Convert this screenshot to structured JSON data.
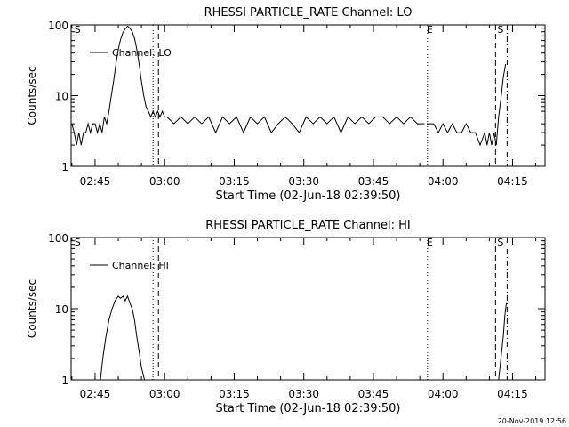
{
  "footer_timestamp": "20-Nov-2019 12:56",
  "chart_data": [
    {
      "type": "line",
      "title": "RHESSI PARTICLE_RATE Channel: LO",
      "xlabel": "Start Time (02-Jun-18 02:39:50)",
      "ylabel": "Counts/sec",
      "yscale": "log",
      "ylim": [
        1,
        100
      ],
      "xlim": [
        "02:39:50",
        "04:22:00"
      ],
      "x_ticks": [
        "02:45",
        "03:00",
        "03:15",
        "03:30",
        "03:45",
        "04:00",
        "04:15"
      ],
      "y_ticks": [
        "1",
        "10",
        "100"
      ],
      "legend": {
        "position": "top-left",
        "entries": [
          "Channel: LO"
        ]
      },
      "markers": [
        {
          "time": "02:40:10",
          "label": "S",
          "style": "none"
        },
        {
          "time": "02:57:30",
          "label": "",
          "style": "dotted"
        },
        {
          "time": "02:58:40",
          "label": "",
          "style": "dashed"
        },
        {
          "time": "03:56:40",
          "label": "E",
          "style": "dotted"
        },
        {
          "time": "04:11:20",
          "label": "S",
          "style": "dashed"
        },
        {
          "time": "04:13:50",
          "label": "",
          "style": "dashdot"
        }
      ],
      "series": [
        {
          "name": "Channel: LO",
          "segments": [
            {
              "x": [
                "02:40:00",
                "02:40:30",
                "02:41:00",
                "02:41:30",
                "02:42:00",
                "02:42:30",
                "02:43:00",
                "02:43:30",
                "02:44:00",
                "02:44:30",
                "02:45:00",
                "02:45:30",
                "02:46:00",
                "02:46:30",
                "02:47:00",
                "02:47:30",
                "02:48:00",
                "02:48:30",
                "02:49:00",
                "02:49:30",
                "02:50:00",
                "02:50:30",
                "02:51:00",
                "02:51:30",
                "02:52:00",
                "02:52:30",
                "02:53:00",
                "02:53:30",
                "02:54:00",
                "02:54:30",
                "02:55:00",
                "02:55:30",
                "02:56:00",
                "02:56:30",
                "02:57:00",
                "02:57:30",
                "02:58:00",
                "02:58:30",
                "02:59:00",
                "02:59:30",
                "03:00:00"
              ],
              "y": [
                4,
                3,
                2,
                3,
                2,
                3,
                3,
                4,
                3,
                4,
                4,
                3,
                4,
                3,
                5,
                4,
                6,
                10,
                16,
                28,
                45,
                62,
                78,
                88,
                96,
                90,
                80,
                65,
                45,
                28,
                16,
                10,
                7,
                6,
                5,
                6,
                5,
                6,
                5,
                6,
                5
              ]
            },
            {
              "x": [
                "03:00:30",
                "03:02:00",
                "03:03:30",
                "03:05:00",
                "03:06:30",
                "03:08:00",
                "03:09:30",
                "03:11:00",
                "03:12:30",
                "03:14:00",
                "03:15:30",
                "03:17:00",
                "03:18:30",
                "03:20:00",
                "03:21:30",
                "03:23:00",
                "03:24:30",
                "03:26:00",
                "03:27:30",
                "03:29:00",
                "03:30:30",
                "03:32:00",
                "03:33:30",
                "03:35:00",
                "03:36:30",
                "03:38:00",
                "03:39:30",
                "03:41:00",
                "03:42:30",
                "03:44:00",
                "03:45:30",
                "03:47:00",
                "03:48:30",
                "03:50:00",
                "03:51:30",
                "03:53:00",
                "03:54:30",
                "03:56:00"
              ],
              "y": [
                5,
                4,
                5,
                4,
                5,
                4,
                5,
                3,
                5,
                4,
                5,
                3,
                5,
                4,
                5,
                3,
                4,
                5,
                4,
                3,
                5,
                4,
                5,
                4,
                5,
                3,
                5,
                4,
                5,
                4,
                5,
                5,
                4,
                5,
                4,
                5,
                4,
                4
              ]
            },
            {
              "x": [
                "03:56:30",
                "03:58:00",
                "03:59:00",
                "04:00:00",
                "04:01:00",
                "04:02:00",
                "04:03:00",
                "04:04:00",
                "04:05:00",
                "04:06:00",
                "04:07:00",
                "04:08:00",
                "04:09:00",
                "04:09:30",
                "04:10:00",
                "04:10:30",
                "04:11:00",
                "04:11:30",
                "04:12:00",
                "04:12:30",
                "04:13:00",
                "04:13:30"
              ],
              "y": [
                4,
                4,
                3,
                4,
                3,
                4,
                3,
                3,
                4,
                3,
                3,
                2,
                3,
                2,
                3,
                2,
                3,
                2,
                5,
                9,
                18,
                28
              ]
            }
          ]
        }
      ]
    },
    {
      "type": "line",
      "title": "RHESSI PARTICLE_RATE Channel: HI",
      "xlabel": "Start Time (02-Jun-18 02:39:50)",
      "ylabel": "Counts/sec",
      "yscale": "log",
      "ylim": [
        1,
        100
      ],
      "xlim": [
        "02:39:50",
        "04:22:00"
      ],
      "x_ticks": [
        "02:45",
        "03:00",
        "03:15",
        "03:30",
        "03:45",
        "04:00",
        "04:15"
      ],
      "y_ticks": [
        "1",
        "10",
        "100"
      ],
      "legend": {
        "position": "top-left",
        "entries": [
          "Channel: HI"
        ]
      },
      "markers": [
        {
          "time": "02:40:10",
          "label": "S",
          "style": "none"
        },
        {
          "time": "02:57:30",
          "label": "",
          "style": "dotted"
        },
        {
          "time": "02:58:40",
          "label": "",
          "style": "dashed"
        },
        {
          "time": "03:56:40",
          "label": "E",
          "style": "dotted"
        },
        {
          "time": "04:11:20",
          "label": "S",
          "style": "dashed"
        },
        {
          "time": "04:13:50",
          "label": "",
          "style": "dashdot"
        }
      ],
      "series": [
        {
          "name": "Channel: HI",
          "segments": [
            {
              "x": [
                "02:46:10",
                "02:46:40",
                "02:47:20",
                "02:48:00",
                "02:48:40",
                "02:49:20",
                "02:50:00",
                "02:50:30",
                "02:51:00",
                "02:51:30",
                "02:52:00",
                "02:52:30",
                "02:53:00",
                "02:53:30",
                "02:54:00",
                "02:54:30",
                "02:55:00",
                "02:55:40"
              ],
              "y": [
                1,
                2,
                4,
                7,
                10,
                13,
                15,
                14,
                15,
                13,
                15,
                12,
                10,
                7,
                4,
                2.5,
                1.5,
                1
              ]
            },
            {
              "x": [
                "04:12:00",
                "04:12:30",
                "04:13:00",
                "04:13:20",
                "04:13:40"
              ],
              "y": [
                1,
                2,
                4,
                8,
                12
              ]
            }
          ]
        }
      ]
    }
  ]
}
